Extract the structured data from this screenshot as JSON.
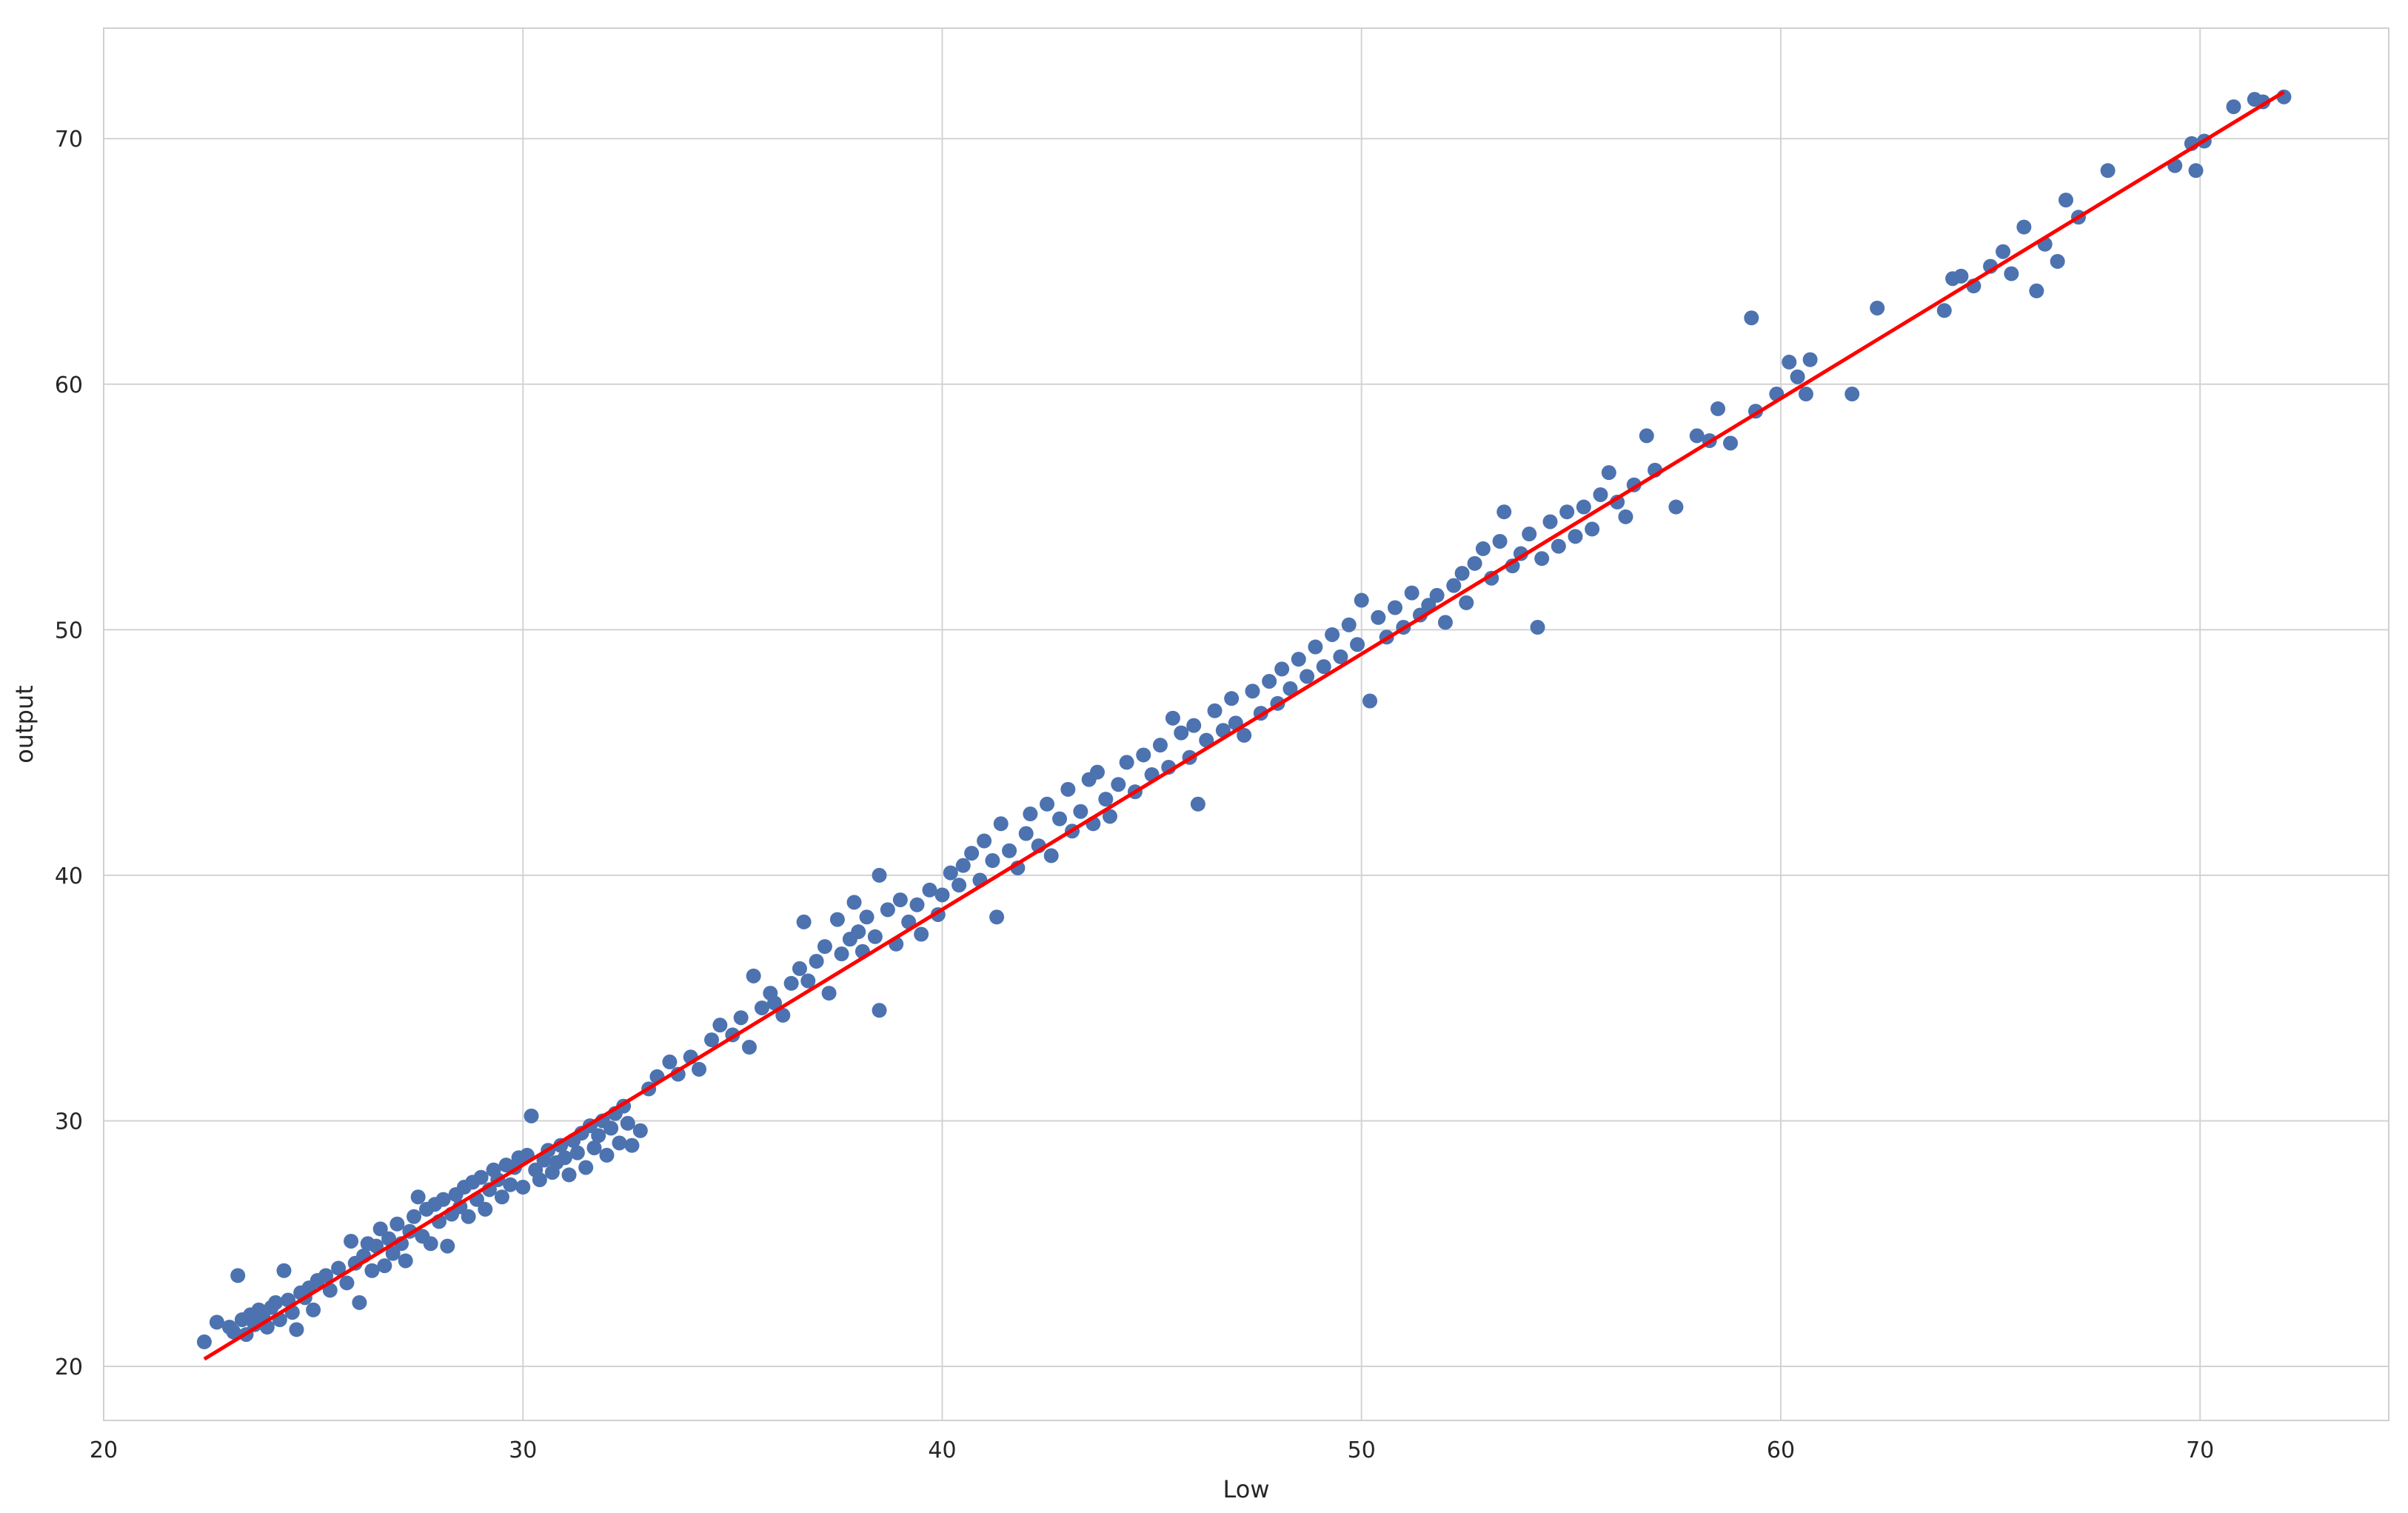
{
  "chart_data": {
    "type": "scatter",
    "title": "",
    "xlabel": "Low",
    "ylabel": "output",
    "xlim": [
      20,
      74.5
    ],
    "ylim": [
      17.8,
      74.5
    ],
    "xticks": [
      20,
      30,
      40,
      50,
      60,
      70
    ],
    "yticks": [
      20,
      30,
      40,
      50,
      60,
      70
    ],
    "grid": true,
    "colors": {
      "points": "#4c72b0",
      "fit_line": "#ff0000",
      "grid": "#d3d3d3",
      "frame": "#d0d0d0"
    },
    "fit_line": {
      "x": [
        22.4,
        72.0
      ],
      "y": [
        20.3,
        71.9
      ]
    },
    "series": [
      {
        "values": [
          [
            22.4,
            21.0
          ],
          [
            22.7,
            21.8
          ],
          [
            23.0,
            21.6
          ],
          [
            23.1,
            21.4
          ],
          [
            23.2,
            23.7
          ],
          [
            23.3,
            21.9
          ],
          [
            23.4,
            21.3
          ],
          [
            23.5,
            22.1
          ],
          [
            23.6,
            21.7
          ],
          [
            23.7,
            22.3
          ],
          [
            23.8,
            22.0
          ],
          [
            23.9,
            21.6
          ],
          [
            24.0,
            22.4
          ],
          [
            24.1,
            22.6
          ],
          [
            24.2,
            21.9
          ],
          [
            24.3,
            23.9
          ],
          [
            24.4,
            22.7
          ],
          [
            24.5,
            22.2
          ],
          [
            24.6,
            21.5
          ],
          [
            24.7,
            23.0
          ],
          [
            24.8,
            22.8
          ],
          [
            24.9,
            23.2
          ],
          [
            25.0,
            22.3
          ],
          [
            25.1,
            23.5
          ],
          [
            25.3,
            23.7
          ],
          [
            25.4,
            23.1
          ],
          [
            25.6,
            24.0
          ],
          [
            25.8,
            23.4
          ],
          [
            25.9,
            25.1
          ],
          [
            26.0,
            24.2
          ],
          [
            26.1,
            22.6
          ],
          [
            26.2,
            24.5
          ],
          [
            26.3,
            25.0
          ],
          [
            26.4,
            23.9
          ],
          [
            26.5,
            24.9
          ],
          [
            26.6,
            25.6
          ],
          [
            26.7,
            24.1
          ],
          [
            26.8,
            25.2
          ],
          [
            26.9,
            24.6
          ],
          [
            27.0,
            25.8
          ],
          [
            27.1,
            25.0
          ],
          [
            27.2,
            24.3
          ],
          [
            27.3,
            25.5
          ],
          [
            27.4,
            26.1
          ],
          [
            27.5,
            26.9
          ],
          [
            27.6,
            25.3
          ],
          [
            27.7,
            26.4
          ],
          [
            27.8,
            25.0
          ],
          [
            27.9,
            26.6
          ],
          [
            28.0,
            25.9
          ],
          [
            28.1,
            26.8
          ],
          [
            28.2,
            24.9
          ],
          [
            28.3,
            26.2
          ],
          [
            28.4,
            27.0
          ],
          [
            28.5,
            26.5
          ],
          [
            28.6,
            27.3
          ],
          [
            28.7,
            26.1
          ],
          [
            28.8,
            27.5
          ],
          [
            28.9,
            26.8
          ],
          [
            29.0,
            27.7
          ],
          [
            29.1,
            26.4
          ],
          [
            29.2,
            27.2
          ],
          [
            29.3,
            28.0
          ],
          [
            29.4,
            27.6
          ],
          [
            29.5,
            26.9
          ],
          [
            29.6,
            28.2
          ],
          [
            29.7,
            27.4
          ],
          [
            29.8,
            28.1
          ],
          [
            29.9,
            28.5
          ],
          [
            30.0,
            27.3
          ],
          [
            30.1,
            28.6
          ],
          [
            30.2,
            30.2
          ],
          [
            30.3,
            28.0
          ],
          [
            30.4,
            27.6
          ],
          [
            30.5,
            28.4
          ],
          [
            30.6,
            28.8
          ],
          [
            30.7,
            27.9
          ],
          [
            30.8,
            28.3
          ],
          [
            30.9,
            29.0
          ],
          [
            31.0,
            28.5
          ],
          [
            31.1,
            27.8
          ],
          [
            31.2,
            29.2
          ],
          [
            31.3,
            28.7
          ],
          [
            31.4,
            29.5
          ],
          [
            31.5,
            28.1
          ],
          [
            31.6,
            29.8
          ],
          [
            31.7,
            28.9
          ],
          [
            31.8,
            29.4
          ],
          [
            31.9,
            30.0
          ],
          [
            32.0,
            28.6
          ],
          [
            32.1,
            29.7
          ],
          [
            32.2,
            30.3
          ],
          [
            32.3,
            29.1
          ],
          [
            32.4,
            30.6
          ],
          [
            32.5,
            29.9
          ],
          [
            32.6,
            29.0
          ],
          [
            32.8,
            29.6
          ],
          [
            33.0,
            31.3
          ],
          [
            33.2,
            31.8
          ],
          [
            33.5,
            32.4
          ],
          [
            33.7,
            31.9
          ],
          [
            34.0,
            32.6
          ],
          [
            34.2,
            32.1
          ],
          [
            34.5,
            33.3
          ],
          [
            34.7,
            33.9
          ],
          [
            35.0,
            33.5
          ],
          [
            35.2,
            34.2
          ],
          [
            35.4,
            33.0
          ],
          [
            35.5,
            35.9
          ],
          [
            35.7,
            34.6
          ],
          [
            35.9,
            35.2
          ],
          [
            36.0,
            34.8
          ],
          [
            36.2,
            34.3
          ],
          [
            36.4,
            35.6
          ],
          [
            36.6,
            36.2
          ],
          [
            36.7,
            38.1
          ],
          [
            36.8,
            35.7
          ],
          [
            37.0,
            36.5
          ],
          [
            37.2,
            37.1
          ],
          [
            37.3,
            35.2
          ],
          [
            37.5,
            38.2
          ],
          [
            37.6,
            36.8
          ],
          [
            37.8,
            37.4
          ],
          [
            37.9,
            38.9
          ],
          [
            38.0,
            37.7
          ],
          [
            38.1,
            36.9
          ],
          [
            38.2,
            38.3
          ],
          [
            38.4,
            37.5
          ],
          [
            38.5,
            40.0
          ],
          [
            38.5,
            34.5
          ],
          [
            38.7,
            38.6
          ],
          [
            38.9,
            37.2
          ],
          [
            39.0,
            39.0
          ],
          [
            39.2,
            38.1
          ],
          [
            39.4,
            38.8
          ],
          [
            39.5,
            37.6
          ],
          [
            39.7,
            39.4
          ],
          [
            39.9,
            38.4
          ],
          [
            40.0,
            39.2
          ],
          [
            40.2,
            40.1
          ],
          [
            40.4,
            39.6
          ],
          [
            40.5,
            40.4
          ],
          [
            40.7,
            40.9
          ],
          [
            40.9,
            39.8
          ],
          [
            41.0,
            41.4
          ],
          [
            41.2,
            40.6
          ],
          [
            41.3,
            38.3
          ],
          [
            41.4,
            42.1
          ],
          [
            41.6,
            41.0
          ],
          [
            41.8,
            40.3
          ],
          [
            42.0,
            41.7
          ],
          [
            42.1,
            42.5
          ],
          [
            42.3,
            41.2
          ],
          [
            42.5,
            42.9
          ],
          [
            42.6,
            40.8
          ],
          [
            42.8,
            42.3
          ],
          [
            43.0,
            43.5
          ],
          [
            43.1,
            41.8
          ],
          [
            43.3,
            42.6
          ],
          [
            43.5,
            43.9
          ],
          [
            43.6,
            42.1
          ],
          [
            43.7,
            44.2
          ],
          [
            43.9,
            43.1
          ],
          [
            44.0,
            42.4
          ],
          [
            44.2,
            43.7
          ],
          [
            44.4,
            44.6
          ],
          [
            44.6,
            43.4
          ],
          [
            44.8,
            44.9
          ],
          [
            45.0,
            44.1
          ],
          [
            45.2,
            45.3
          ],
          [
            45.4,
            44.4
          ],
          [
            45.5,
            46.4
          ],
          [
            45.7,
            45.8
          ],
          [
            45.9,
            44.8
          ],
          [
            46.0,
            46.1
          ],
          [
            46.1,
            42.9
          ],
          [
            46.3,
            45.5
          ],
          [
            46.5,
            46.7
          ],
          [
            46.7,
            45.9
          ],
          [
            46.9,
            47.2
          ],
          [
            47.0,
            46.2
          ],
          [
            47.2,
            45.7
          ],
          [
            47.4,
            47.5
          ],
          [
            47.6,
            46.6
          ],
          [
            47.8,
            47.9
          ],
          [
            48.0,
            47.0
          ],
          [
            48.1,
            48.4
          ],
          [
            48.3,
            47.6
          ],
          [
            48.5,
            48.8
          ],
          [
            48.7,
            48.1
          ],
          [
            48.9,
            49.3
          ],
          [
            49.1,
            48.5
          ],
          [
            49.3,
            49.8
          ],
          [
            49.5,
            48.9
          ],
          [
            49.7,
            50.2
          ],
          [
            49.9,
            49.4
          ],
          [
            50.0,
            51.2
          ],
          [
            50.2,
            47.1
          ],
          [
            50.4,
            50.5
          ],
          [
            50.6,
            49.7
          ],
          [
            50.8,
            50.9
          ],
          [
            51.0,
            50.1
          ],
          [
            51.2,
            51.5
          ],
          [
            51.4,
            50.6
          ],
          [
            51.6,
            51.0
          ],
          [
            51.8,
            51.4
          ],
          [
            52.0,
            50.3
          ],
          [
            52.2,
            51.8
          ],
          [
            52.4,
            52.3
          ],
          [
            52.5,
            51.1
          ],
          [
            52.7,
            52.7
          ],
          [
            52.9,
            53.3
          ],
          [
            53.1,
            52.1
          ],
          [
            53.3,
            53.6
          ],
          [
            53.4,
            54.8
          ],
          [
            53.6,
            52.6
          ],
          [
            53.8,
            53.1
          ],
          [
            54.0,
            53.9
          ],
          [
            54.2,
            50.1
          ],
          [
            54.3,
            52.9
          ],
          [
            54.5,
            54.4
          ],
          [
            54.7,
            53.4
          ],
          [
            54.9,
            54.8
          ],
          [
            55.1,
            53.8
          ],
          [
            55.3,
            55.0
          ],
          [
            55.5,
            54.1
          ],
          [
            55.7,
            55.5
          ],
          [
            55.9,
            56.4
          ],
          [
            56.1,
            55.2
          ],
          [
            56.3,
            54.6
          ],
          [
            56.5,
            55.9
          ],
          [
            56.8,
            57.9
          ],
          [
            57.0,
            56.5
          ],
          [
            57.5,
            55.0
          ],
          [
            58.0,
            57.9
          ],
          [
            58.3,
            57.7
          ],
          [
            58.5,
            59.0
          ],
          [
            58.8,
            57.6
          ],
          [
            59.3,
            62.7
          ],
          [
            59.4,
            58.9
          ],
          [
            59.9,
            59.6
          ],
          [
            60.2,
            60.9
          ],
          [
            60.4,
            60.3
          ],
          [
            60.6,
            59.6
          ],
          [
            60.7,
            61.0
          ],
          [
            61.7,
            59.6
          ],
          [
            62.3,
            63.1
          ],
          [
            63.9,
            63.0
          ],
          [
            64.1,
            64.3
          ],
          [
            64.3,
            64.4
          ],
          [
            64.6,
            64.0
          ],
          [
            65.0,
            64.8
          ],
          [
            65.3,
            65.4
          ],
          [
            65.5,
            64.5
          ],
          [
            65.8,
            66.4
          ],
          [
            66.1,
            63.8
          ],
          [
            66.3,
            65.7
          ],
          [
            66.6,
            65.0
          ],
          [
            66.8,
            67.5
          ],
          [
            67.1,
            66.8
          ],
          [
            67.8,
            68.7
          ],
          [
            69.4,
            68.9
          ],
          [
            69.8,
            69.8
          ],
          [
            69.9,
            68.7
          ],
          [
            70.1,
            69.9
          ],
          [
            70.8,
            71.3
          ],
          [
            71.3,
            71.6
          ],
          [
            71.5,
            71.5
          ],
          [
            72.0,
            71.7
          ]
        ]
      }
    ]
  }
}
